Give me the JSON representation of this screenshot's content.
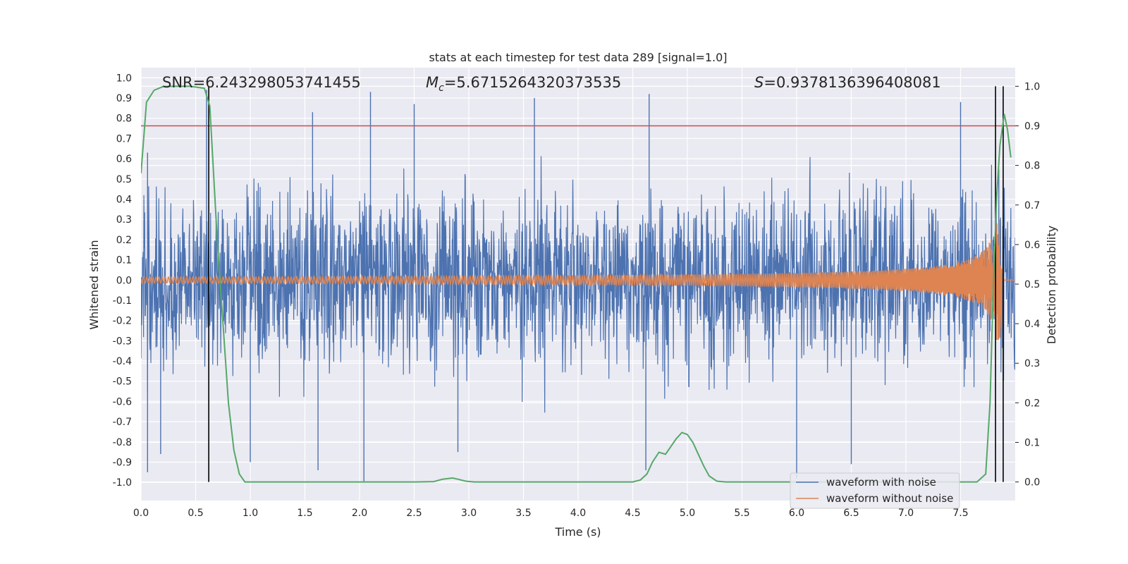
{
  "chart_data": {
    "type": "line",
    "title": "stats at each timestep for test data 289 [signal=1.0]",
    "xlabel": "Time (s)",
    "ylabel": "Whitened strain",
    "y2label": "Detection probability",
    "xlim": [
      0.0,
      8.0
    ],
    "ylim": [
      -1.09,
      1.05
    ],
    "y2lim": [
      -0.047,
      1.047
    ],
    "xticks": [
      "0.0",
      "0.5",
      "1.0",
      "1.5",
      "2.0",
      "2.5",
      "3.0",
      "3.5",
      "4.0",
      "4.5",
      "5.0",
      "5.5",
      "6.0",
      "6.5",
      "7.0",
      "7.5"
    ],
    "yticks": [
      "1.0",
      "0.9",
      "0.8",
      "0.7",
      "0.6",
      "0.5",
      "0.4",
      "0.3",
      "0.2",
      "0.1",
      "0.0",
      "-0.1",
      "-0.2",
      "-0.3",
      "-0.4",
      "-0.5",
      "-0.6",
      "-0.7",
      "-0.8",
      "-0.9",
      "-1.0"
    ],
    "y2ticks": [
      "1.0",
      "0.9",
      "0.8",
      "0.7",
      "0.6",
      "0.5",
      "0.4",
      "0.3",
      "0.2",
      "0.1",
      "0.0"
    ],
    "annotations": {
      "snr": "SNR=6.243298053741455",
      "mc_symbol": "M",
      "mc_sub": "c",
      "mc_value": "=5.6715264320373535",
      "s_symbol": "S",
      "s_value": "=0.9378136396408081"
    },
    "threshold_line": {
      "y2": 0.9,
      "color": "#c44e52"
    },
    "vertical_lines_x": [
      0.62,
      7.82,
      7.89
    ],
    "legend": {
      "position": "lower right",
      "entries": [
        {
          "label": "waveform with noise",
          "color": "#4c72b0"
        },
        {
          "label": "waveform without noise",
          "color": "#dd8452"
        }
      ]
    },
    "series": [
      {
        "name": "waveform with noise",
        "color": "#4c72b0",
        "kind": "noise",
        "noise_amplitude_typical": 0.5,
        "spike_examples": [
          [
            0.06,
            0.63
          ],
          [
            0.06,
            -0.95
          ],
          [
            0.18,
            -0.86
          ],
          [
            0.6,
            0.94
          ],
          [
            1.0,
            -0.9
          ],
          [
            1.57,
            0.83
          ],
          [
            1.62,
            -0.94
          ],
          [
            2.04,
            -1.0
          ],
          [
            2.1,
            0.93
          ],
          [
            2.5,
            0.87
          ],
          [
            2.9,
            -0.85
          ],
          [
            3.6,
            0.9
          ],
          [
            4.65,
            0.92
          ],
          [
            4.62,
            -0.94
          ],
          [
            6.0,
            -0.98
          ],
          [
            6.5,
            -0.91
          ],
          [
            7.5,
            0.88
          ],
          [
            7.85,
            0.55
          ]
        ]
      },
      {
        "name": "waveform without noise",
        "color": "#dd8452",
        "kind": "chirp",
        "start_amplitude": 0.015,
        "peak_amplitude": 0.3,
        "merger_time": 7.88
      },
      {
        "name": "detection probability",
        "axis": "right",
        "color": "#55a868",
        "x": [
          0.0,
          0.05,
          0.12,
          0.2,
          0.3,
          0.45,
          0.58,
          0.63,
          0.66,
          0.7,
          0.75,
          0.8,
          0.85,
          0.9,
          0.95,
          1.0,
          1.5,
          2.0,
          2.5,
          2.68,
          2.76,
          2.85,
          2.9,
          2.97,
          3.05,
          3.5,
          4.0,
          4.5,
          4.57,
          4.63,
          4.68,
          4.74,
          4.8,
          4.85,
          4.9,
          4.95,
          5.0,
          5.05,
          5.1,
          5.15,
          5.2,
          5.27,
          5.35,
          5.5,
          6.0,
          7.0,
          7.65,
          7.73,
          7.77,
          7.8,
          7.83,
          7.86,
          7.9,
          7.93,
          7.96
        ],
        "y": [
          0.78,
          0.96,
          0.99,
          0.999,
          1.0,
          1.0,
          0.995,
          0.95,
          0.8,
          0.6,
          0.4,
          0.2,
          0.08,
          0.02,
          0.0,
          0.0,
          0.0,
          0.0,
          0.0,
          0.001,
          0.007,
          0.01,
          0.007,
          0.002,
          0.0,
          0.0,
          0.0,
          0.0,
          0.005,
          0.02,
          0.05,
          0.075,
          0.07,
          0.09,
          0.11,
          0.125,
          0.12,
          0.1,
          0.07,
          0.04,
          0.015,
          0.002,
          0.0,
          0.0,
          0.0,
          0.0,
          0.0,
          0.02,
          0.2,
          0.5,
          0.72,
          0.85,
          0.93,
          0.89,
          0.82
        ]
      }
    ]
  }
}
